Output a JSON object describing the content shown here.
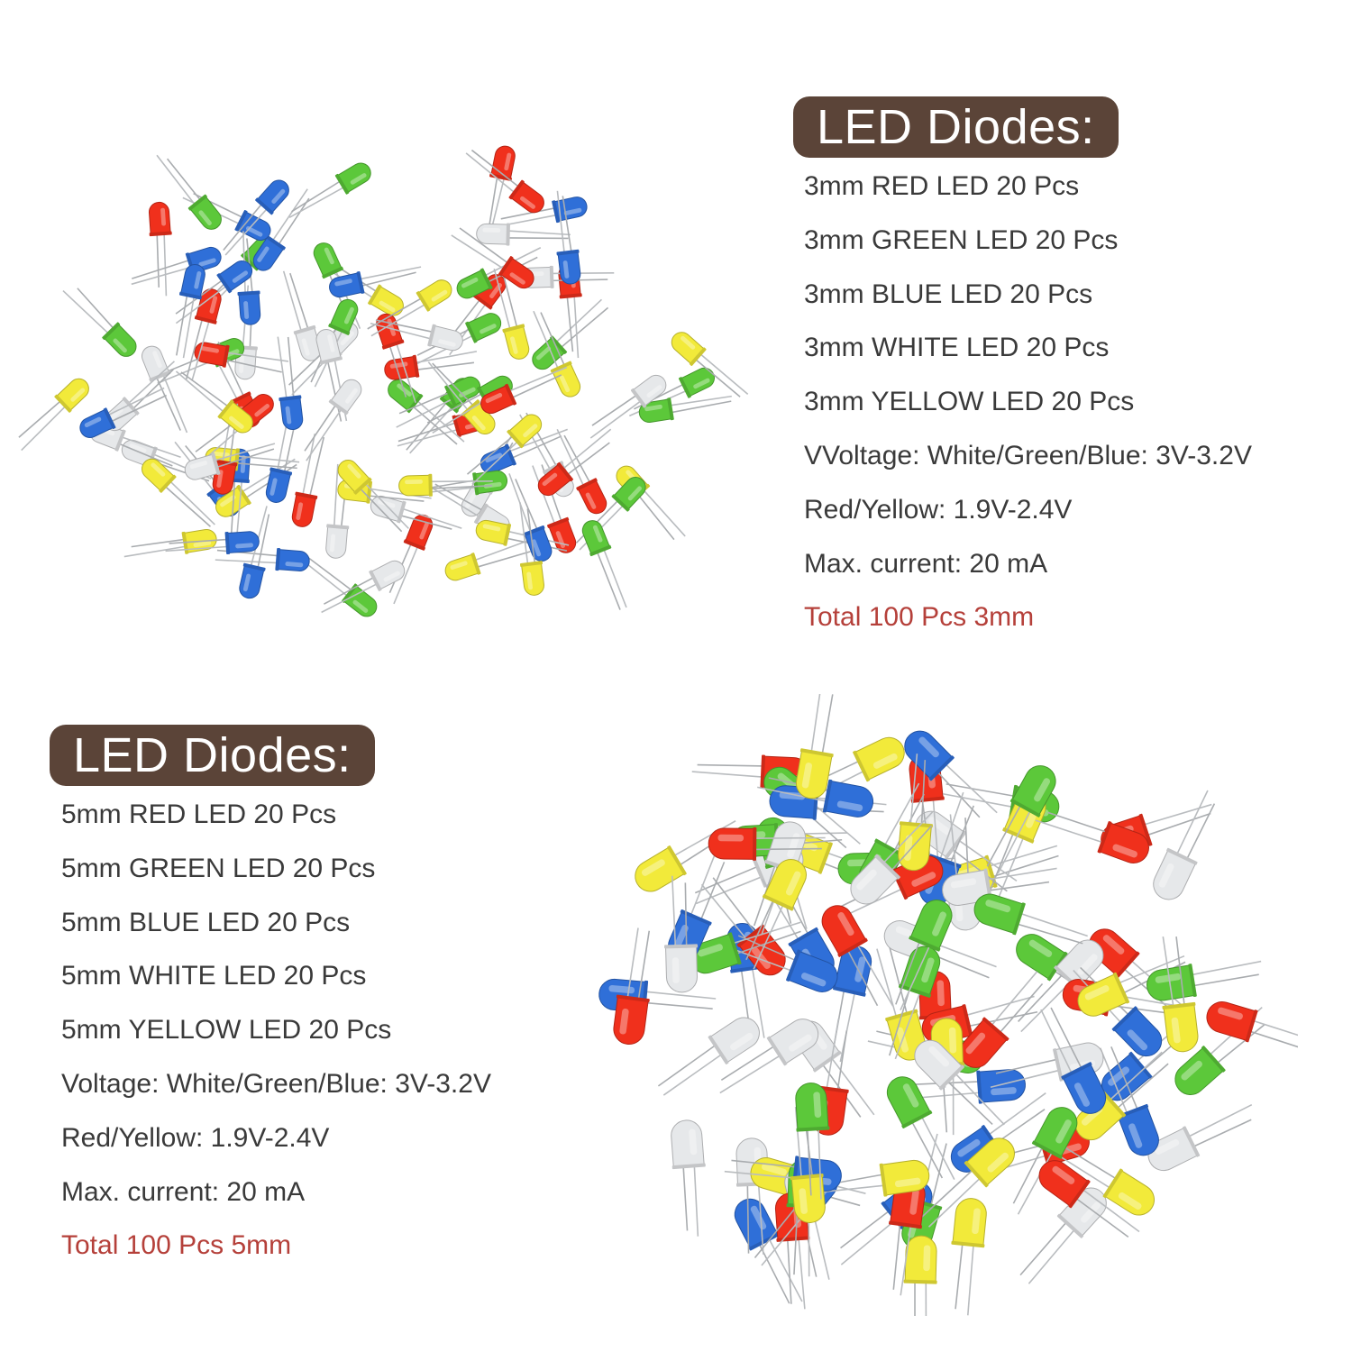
{
  "sections": {
    "mm3": {
      "title": "LED Diodes:",
      "items": [
        "3mm RED LED 20 Pcs",
        "3mm GREEN LED 20 Pcs",
        "3mm BLUE LED 20 Pcs",
        "3mm WHITE LED 20 Pcs",
        "3mm YELLOW LED 20 Pcs",
        "VVoltage: White/Green/Blue: 3V-3.2V",
        "Red/Yellow: 1.9V-2.4V",
        "Max. current: 20 mA"
      ],
      "total": "Total 100 Pcs 3mm"
    },
    "mm5": {
      "title": "LED Diodes:",
      "items": [
        "5mm RED LED 20 Pcs",
        "5mm GREEN LED 20 Pcs",
        "5mm BLUE LED 20 Pcs",
        "5mm WHITE LED 20 Pcs",
        "5mm YELLOW LED 20 Pcs",
        "Voltage: White/Green/Blue: 3V-3.2V",
        "Red/Yellow: 1.9V-2.4V",
        "Max. current: 20 mA"
      ],
      "total": "Total 100 Pcs 5mm"
    }
  },
  "colors": {
    "badge_bg": "#5b4438",
    "badge_text": "#ffffff",
    "body_text": "#3a3a3a",
    "total_text": "#b5403a",
    "led_red": "#f0301c",
    "led_green": "#5cc83a",
    "led_blue": "#2f6fd8",
    "led_yellow": "#f2ea3a",
    "led_white": "#e6e8ea"
  }
}
